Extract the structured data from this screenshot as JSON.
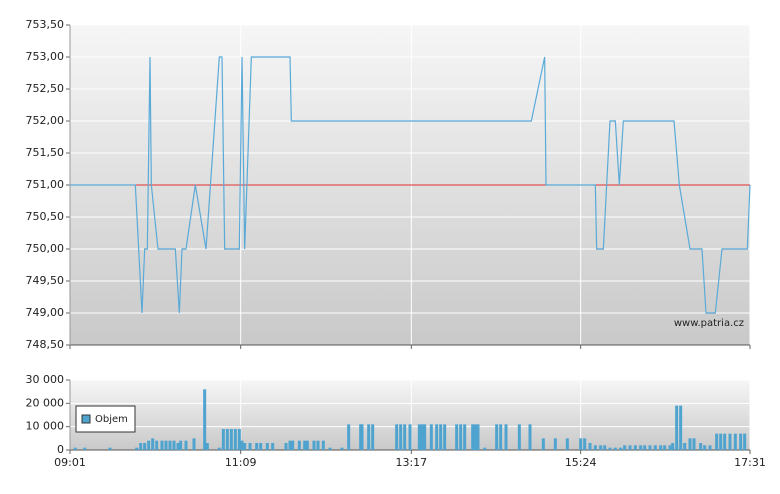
{
  "chart_data": [
    {
      "type": "line",
      "x": [
        "09:01",
        "09:50",
        "09:55",
        "09:57",
        "09:59",
        "10:01",
        "10:02",
        "10:07",
        "10:20",
        "10:23",
        "10:25",
        "10:28",
        "10:35",
        "10:43",
        "10:53",
        "10:55",
        "10:57",
        "11:08",
        "11:10",
        "11:12",
        "11:17",
        "11:46",
        "11:47",
        "14:47",
        "14:57",
        "14:58",
        "15:35",
        "15:36",
        "15:41",
        "15:46",
        "15:50",
        "15:53",
        "15:56",
        "16:34",
        "16:38",
        "16:46",
        "16:55",
        "16:58",
        "17:05",
        "17:10",
        "17:29",
        "17:31"
      ],
      "series": [
        {
          "color": "#5aaad8",
          "values": [
            751,
            751,
            749,
            750,
            750,
            753,
            751,
            750,
            750,
            749,
            750,
            750,
            751,
            750,
            753,
            753,
            750,
            750,
            753,
            750,
            753,
            753,
            752,
            752,
            753,
            751,
            751,
            750,
            750,
            752,
            752,
            751,
            752,
            752,
            751,
            750,
            750,
            749,
            749,
            750,
            750,
            751
          ]
        }
      ],
      "reference_line": {
        "value": 751,
        "color": "#e03030"
      },
      "xlim": [
        "09:01",
        "17:31"
      ],
      "ylim": [
        748.5,
        753.5
      ],
      "yticks": [
        {
          "value": 748.5,
          "label": "748,50"
        },
        {
          "value": 749,
          "label": "749,00"
        },
        {
          "value": 749.5,
          "label": "749,50"
        },
        {
          "value": 750,
          "label": "750,00"
        },
        {
          "value": 750.5,
          "label": "750,50"
        },
        {
          "value": 751,
          "label": "751,00"
        },
        {
          "value": 751.5,
          "label": "751,50"
        },
        {
          "value": 752,
          "label": "752,00"
        },
        {
          "value": 752.5,
          "label": "752,50"
        },
        {
          "value": 753,
          "label": "753,00"
        },
        {
          "value": 753.5,
          "label": "753,50"
        }
      ],
      "grid": true,
      "watermark": "www.patria.cz"
    },
    {
      "type": "bar",
      "x": [
        "09:05",
        "09:12",
        "09:31",
        "09:51",
        "09:54",
        "09:57",
        "10:00",
        "10:03",
        "10:06",
        "10:10",
        "10:13",
        "10:16",
        "10:19",
        "10:22",
        "10:24",
        "10:28",
        "10:34",
        "10:42",
        "10:44",
        "10:53",
        "10:56",
        "10:59",
        "11:02",
        "11:05",
        "11:08",
        "11:10",
        "11:12",
        "11:16",
        "11:21",
        "11:24",
        "11:29",
        "11:33",
        "11:43",
        "11:46",
        "11:48",
        "11:53",
        "11:57",
        "11:59",
        "12:04",
        "12:07",
        "12:11",
        "12:16",
        "12:25",
        "12:30",
        "12:39",
        "12:40",
        "12:45",
        "12:48",
        "13:06",
        "13:09",
        "13:12",
        "13:16",
        "13:23",
        "13:25",
        "13:27",
        "13:32",
        "13:36",
        "13:39",
        "13:42",
        "13:51",
        "13:54",
        "13:57",
        "14:03",
        "14:05",
        "14:07",
        "14:12",
        "14:21",
        "14:24",
        "14:28",
        "14:38",
        "14:46",
        "14:56",
        "15:05",
        "15:14",
        "15:24",
        "15:27",
        "15:31",
        "15:35",
        "15:39",
        "15:42",
        "15:46",
        "15:50",
        "15:54",
        "15:57",
        "16:01",
        "16:05",
        "16:09",
        "16:12",
        "16:16",
        "16:20",
        "16:24",
        "16:27",
        "16:31",
        "16:33",
        "16:36",
        "16:39",
        "16:42",
        "16:46",
        "16:49",
        "16:54",
        "16:57",
        "17:01",
        "17:06",
        "17:09",
        "17:12",
        "17:16",
        "17:20",
        "17:24",
        "17:27"
      ],
      "series": [
        {
          "name": "Objem",
          "color": "#4fa3cf",
          "values": [
            1000,
            1000,
            1000,
            1000,
            3000,
            3000,
            4000,
            5000,
            4000,
            4000,
            4000,
            4000,
            4000,
            3000,
            4000,
            4000,
            5000,
            26000,
            3000,
            1000,
            9000,
            9000,
            9000,
            9000,
            9000,
            4000,
            3000,
            3000,
            3000,
            3000,
            3000,
            3000,
            3000,
            4000,
            4000,
            4000,
            4000,
            4000,
            4000,
            4000,
            4000,
            1000,
            1000,
            11000,
            11000,
            11000,
            11000,
            11000,
            11000,
            11000,
            11000,
            11000,
            11000,
            11000,
            11000,
            11000,
            11000,
            11000,
            11000,
            11000,
            11000,
            11000,
            11000,
            11000,
            11000,
            1000,
            11000,
            11000,
            11000,
            11000,
            11000,
            5000,
            5000,
            5000,
            5000,
            5000,
            3000,
            2000,
            2000,
            2000,
            1000,
            1000,
            1000,
            2000,
            2000,
            2000,
            2000,
            2000,
            2000,
            2000,
            2000,
            2000,
            2000,
            3000,
            19000,
            19000,
            3000,
            5000,
            5000,
            3000,
            2000,
            2000,
            7000,
            7000,
            7000,
            7000,
            7000,
            7000,
            7000
          ]
        }
      ],
      "xlim": [
        "09:01",
        "17:31"
      ],
      "xticks": [
        "09:01",
        "11:09",
        "13:17",
        "15:24",
        "17:31"
      ],
      "ylim": [
        0,
        30000
      ],
      "yticks": [
        0,
        {
          "value": 10000,
          "label": "10 000"
        },
        {
          "value": 20000,
          "label": "20 000"
        },
        {
          "value": 30000,
          "label": "30 000"
        }
      ],
      "grid": true,
      "legend": "left"
    }
  ]
}
